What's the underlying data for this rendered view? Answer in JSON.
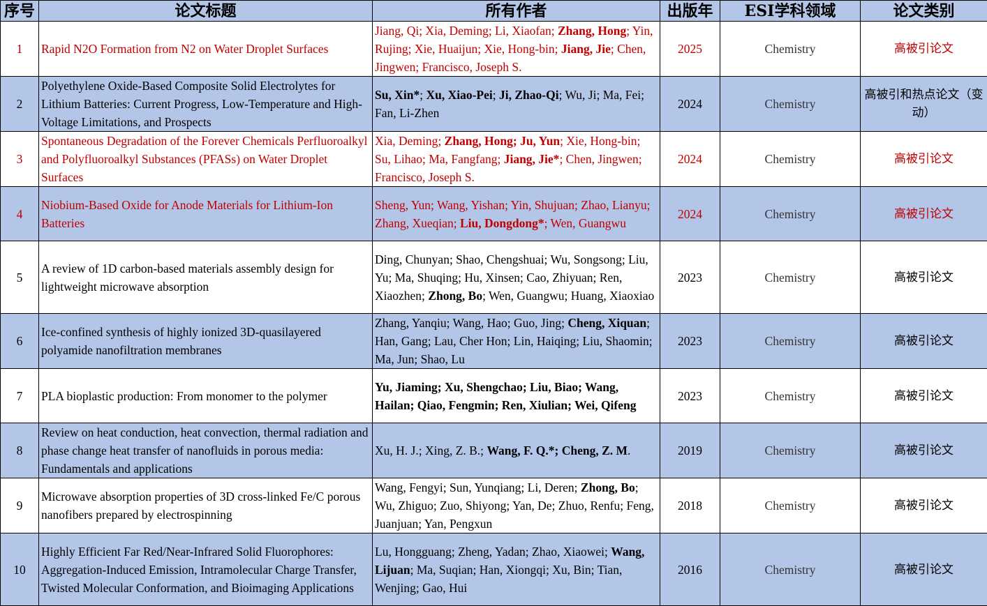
{
  "colors": {
    "header_bg": "#b4c6e7",
    "alt_row_bg": "#b4c6e7",
    "highlight_red": "#c00000"
  },
  "headers": [
    "序号",
    "论文标题",
    "所有作者",
    "出版年",
    "ESI学科领域",
    "论文类别"
  ],
  "rows": [
    {
      "no": "1",
      "red": true,
      "title": "Rapid N2O Formation from N2 on Water Droplet Surfaces",
      "authors": [
        {
          "t": "Jiang, Qi; Xia, Deming; Li, Xiaofan; "
        },
        {
          "t": "Zhang, Hong",
          "b": true
        },
        {
          "t": "; Yin, Rujing; Xie, Huaijun; Xie, Hong-bin; "
        },
        {
          "t": "Jiang, Jie",
          "b": true
        },
        {
          "t": "; Chen, Jingwen; Francisco, Joseph S."
        }
      ],
      "year": "2025",
      "field": "Chemistry",
      "category": "高被引论文"
    },
    {
      "no": "2",
      "red": false,
      "title": "Polyethylene Oxide-Based Composite Solid Electrolytes for Lithium Batteries: Current Progress, Low-Temperature and High-Voltage Limitations, and Prospects",
      "authors": [
        {
          "t": "Su, Xin*",
          "b": true
        },
        {
          "t": "; "
        },
        {
          "t": "Xu, Xiao-Pei",
          "b": true
        },
        {
          "t": "; "
        },
        {
          "t": "Ji, Zhao-Qi",
          "b": true
        },
        {
          "t": "; Wu, Ji; Ma, Fei; Fan, Li-Zhen"
        }
      ],
      "year": "2024",
      "field": "Chemistry",
      "category": "高被引和热点论文（变动）"
    },
    {
      "no": "3",
      "red": true,
      "title": "Spontaneous Degradation of the Forever Chemicals Perfluoroalkyl and Polyfluoroalkyl Substances (PFASs) on Water Droplet Surfaces",
      "authors": [
        {
          "t": "Xia, Deming; "
        },
        {
          "t": "Zhang, Hong; Ju, Yun",
          "b": true
        },
        {
          "t": "; Xie, Hong-bin; Su, Lihao; Ma, Fangfang; "
        },
        {
          "t": "Jiang, Jie*",
          "b": true
        },
        {
          "t": "; Chen, Jingwen; Francisco, Joseph S."
        }
      ],
      "year": "2024",
      "field": "Chemistry",
      "category": "高被引论文"
    },
    {
      "no": "4",
      "red": true,
      "title": "Niobium-Based Oxide for Anode Materials for Lithium-Ion Batteries",
      "authors": [
        {
          "t": "Sheng, Yun; Wang, Yishan; Yin, Shujuan; Zhao, Lianyu; Zhang, Xueqian; "
        },
        {
          "t": "Liu, Dongdong*",
          "b": true
        },
        {
          "t": "; Wen, Guangwu"
        }
      ],
      "year": "2024",
      "field": "Chemistry",
      "category": "高被引论文"
    },
    {
      "no": "5",
      "red": false,
      "title": "A review of 1D carbon-based materials assembly design for lightweight microwave absorption",
      "authors": [
        {
          "t": "Ding, Chunyan; Shao, Chengshuai; Wu, Songsong; Liu, Yu; Ma, Shuqing; Hu, Xinsen; Cao, Zhiyuan; Ren, Xiaozhen; "
        },
        {
          "t": "Zhong, Bo",
          "b": true
        },
        {
          "t": "; Wen, Guangwu; Huang, Xiaoxiao"
        }
      ],
      "year": "2023",
      "field": "Chemistry",
      "category": "高被引论文"
    },
    {
      "no": "6",
      "red": false,
      "title": "Ice-confined synthesis of highly ionized 3D-quasilayered polyamide nanofiltration membranes",
      "authors": [
        {
          "t": "Zhang, Yanqiu; Wang, Hao; Guo, Jing; "
        },
        {
          "t": "Cheng, Xiquan",
          "b": true
        },
        {
          "t": "; Han, Gang; Lau, Cher Hon; Lin, Haiqing; Liu, Shaomin; Ma, Jun; Shao, Lu"
        }
      ],
      "year": "2023",
      "field": "Chemistry",
      "category": "高被引论文"
    },
    {
      "no": "7",
      "red": false,
      "title": "PLA bioplastic production: From monomer to the polymer",
      "authors": [
        {
          "t": "Yu, Jiaming; Xu, Shengchao; Liu, Biao; Wang, Hailan; Qiao, Fengmin; Ren, Xiulian; Wei, Qifeng",
          "b": true
        }
      ],
      "year": "2023",
      "field": "Chemistry",
      "category": "高被引论文"
    },
    {
      "no": "8",
      "red": false,
      "title": "Review on heat conduction, heat convection, thermal radiation and phase change heat transfer of nanofluids in porous media: Fundamentals and applications",
      "authors": [
        {
          "t": "Xu, H. J.; Xing, Z. B.; "
        },
        {
          "t": "Wang, F. Q.*; Cheng, Z. M",
          "b": true
        },
        {
          "t": "."
        }
      ],
      "year": "2019",
      "field": "Chemistry",
      "category": "高被引论文"
    },
    {
      "no": "9",
      "red": false,
      "title": "Microwave absorption properties of 3D cross-linked Fe/C porous nanofibers prepared by electrospinning",
      "authors": [
        {
          "t": "Wang, Fengyi; Sun, Yunqiang; Li, Deren; "
        },
        {
          "t": "Zhong, Bo",
          "b": true
        },
        {
          "t": "; Wu, Zhiguo; Zuo, Shiyong; Yan, De; Zhuo, Renfu; Feng, Juanjuan; Yan, Pengxun"
        }
      ],
      "year": "2018",
      "field": "Chemistry",
      "category": "高被引论文"
    },
    {
      "no": "10",
      "red": false,
      "title": "Highly Efficient Far Red/Near-Infrared Solid Fluorophores: Aggregation-Induced Emission, Intramolecular Charge Transfer, Twisted Molecular Conformation, and Bioimaging Applications",
      "authors": [
        {
          "t": "Lu, Hongguang; Zheng, Yadan; Zhao, Xiaowei; "
        },
        {
          "t": "Wang, Lijuan",
          "b": true
        },
        {
          "t": "; Ma, Suqian; Han, Xiongqi; Xu, Bin; Tian, Wenjing; Gao, Hui"
        }
      ],
      "year": "2016",
      "field": "Chemistry",
      "category": "高被引论文"
    }
  ]
}
